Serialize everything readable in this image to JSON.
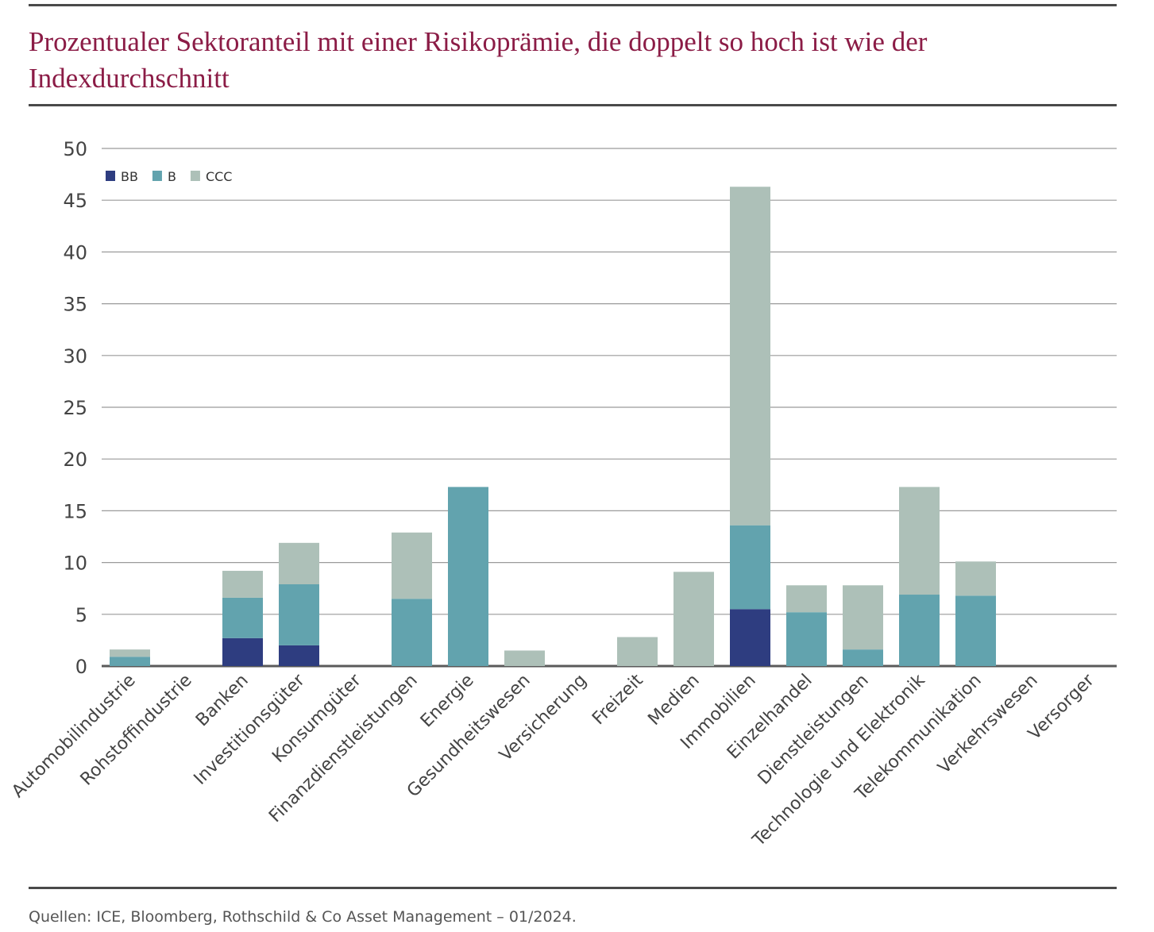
{
  "title": "Prozentualer Sektoranteil mit einer Risikoprämie, die doppelt so hoch ist wie der Indexdurchschnitt",
  "source": "Quellen: ICE, Bloomberg, Rothschild & Co Asset Management – 01/2024.",
  "colors": {
    "BB": "#2e3d80",
    "B": "#62a3ae",
    "CCC": "#adc0b8",
    "title": "#8b1c46"
  },
  "chart_data": {
    "type": "bar",
    "stacked": true,
    "ylim": [
      0,
      50
    ],
    "yticks": [
      0,
      5,
      10,
      15,
      20,
      25,
      30,
      35,
      40,
      45,
      50
    ],
    "grid": true,
    "legend_position": "top-left",
    "categories": [
      "Automobilindustrie",
      "Rohstoffindustrie",
      "Banken",
      "Investitionsgüter",
      "Konsumgüter",
      "Finanzdienstleistungen",
      "Energie",
      "Gesundheitswesen",
      "Versicherung",
      "Freizeit",
      "Medien",
      "Immobilien",
      "Einzelhandel",
      "Dienstleistungen",
      "Technologie und Elektronik",
      "Telekommunikation",
      "Verkehrswesen",
      "Versorger"
    ],
    "series": [
      {
        "name": "BB",
        "values": [
          0,
          0,
          2.7,
          2.0,
          0,
          0,
          0,
          0,
          0,
          0,
          0,
          5.5,
          0,
          0,
          0,
          0,
          0,
          0
        ]
      },
      {
        "name": "B",
        "values": [
          0.9,
          0,
          3.9,
          5.9,
          0,
          6.5,
          17.3,
          0,
          0,
          0,
          0,
          8.1,
          5.2,
          1.6,
          6.9,
          6.8,
          0,
          0
        ]
      },
      {
        "name": "CCC",
        "values": [
          0.7,
          0,
          2.6,
          4.0,
          0,
          6.4,
          0,
          1.5,
          0,
          2.8,
          9.1,
          32.7,
          2.6,
          6.2,
          10.4,
          3.3,
          0,
          0
        ]
      }
    ]
  }
}
